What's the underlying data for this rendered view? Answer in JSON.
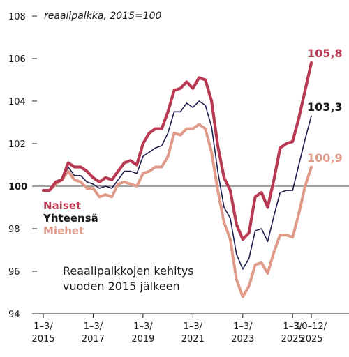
{
  "chart_data": {
    "type": "line",
    "ylabel": "reaalipalkka, 2015=100",
    "ylim": [
      94,
      108
    ],
    "yticks": [
      94,
      96,
      98,
      100,
      102,
      104,
      106,
      108
    ],
    "baseline": 100,
    "baseline_label": "100",
    "xticks": [
      {
        "x": 2015.0,
        "line1": "1–3/",
        "line2": "2015"
      },
      {
        "x": 2017.0,
        "line1": "1–3/",
        "line2": "2017"
      },
      {
        "x": 2019.0,
        "line1": "1–3/",
        "line2": "2019"
      },
      {
        "x": 2021.0,
        "line1": "1–3/",
        "line2": "2021"
      },
      {
        "x": 2023.0,
        "line1": "1–3/",
        "line2": "2023"
      },
      {
        "x": 2025.0,
        "line1": "1–3/",
        "line2": "2025"
      },
      {
        "x": 2025.75,
        "line1": "10–12/",
        "line2": "2025"
      }
    ],
    "xlim": [
      2015.0,
      2025.75
    ],
    "annotation": [
      "Reaalipalkkojen kehitys",
      "vuoden 2015 jälkeen"
    ],
    "series": [
      {
        "name": "Miehet",
        "color": "#e09a8a",
        "end_label": "100,9",
        "x": [
          2015.0,
          2015.25,
          2015.5,
          2015.75,
          2016.0,
          2016.25,
          2016.5,
          2016.75,
          2017.0,
          2017.25,
          2017.5,
          2017.75,
          2018.0,
          2018.25,
          2018.5,
          2018.75,
          2019.0,
          2019.25,
          2019.5,
          2019.75,
          2020.0,
          2020.25,
          2020.5,
          2020.75,
          2021.0,
          2021.25,
          2021.5,
          2021.75,
          2022.0,
          2022.25,
          2022.5,
          2022.75,
          2023.0,
          2023.25,
          2023.5,
          2023.75,
          2024.0,
          2024.25,
          2024.5,
          2024.75,
          2025.0,
          2025.25,
          2025.5,
          2025.75
        ],
        "values": [
          99.8,
          99.8,
          100.1,
          100.3,
          100.7,
          100.3,
          100.2,
          99.9,
          99.9,
          99.5,
          99.6,
          99.5,
          100.1,
          100.2,
          100.1,
          100.0,
          100.6,
          100.7,
          100.9,
          100.9,
          101.4,
          102.5,
          102.4,
          102.7,
          102.7,
          102.9,
          102.7,
          101.6,
          99.8,
          98.3,
          97.5,
          95.6,
          94.8,
          95.3,
          96.3,
          96.4,
          95.9,
          96.9,
          97.7,
          97.7,
          97.6,
          98.7,
          100.0,
          100.9
        ]
      },
      {
        "name": "Yhteensä",
        "color": "#1e1f4d",
        "end_label": "103,3",
        "x": [
          2015.0,
          2015.25,
          2015.5,
          2015.75,
          2016.0,
          2016.25,
          2016.5,
          2016.75,
          2017.0,
          2017.25,
          2017.5,
          2017.75,
          2018.0,
          2018.25,
          2018.5,
          2018.75,
          2019.0,
          2019.25,
          2019.5,
          2019.75,
          2020.0,
          2020.25,
          2020.5,
          2020.75,
          2021.0,
          2021.25,
          2021.5,
          2021.75,
          2022.0,
          2022.25,
          2022.5,
          2022.75,
          2023.0,
          2023.25,
          2023.5,
          2023.75,
          2024.0,
          2024.25,
          2024.5,
          2024.75,
          2025.0,
          2025.25,
          2025.5,
          2025.75
        ],
        "values": [
          99.8,
          99.8,
          100.2,
          100.3,
          100.9,
          100.5,
          100.5,
          100.2,
          100.1,
          99.9,
          100.0,
          99.9,
          100.3,
          100.7,
          100.7,
          100.6,
          101.4,
          101.6,
          101.8,
          101.9,
          102.5,
          103.5,
          103.5,
          103.9,
          103.7,
          104.0,
          103.8,
          102.8,
          100.7,
          99.0,
          98.5,
          96.8,
          96.1,
          96.6,
          97.9,
          98.0,
          97.4,
          98.6,
          99.7,
          99.8,
          99.8,
          101.0,
          102.2,
          103.3
        ]
      },
      {
        "name": "Naiset",
        "color": "#b83a52",
        "end_label": "105,8",
        "x": [
          2015.0,
          2015.25,
          2015.5,
          2015.75,
          2016.0,
          2016.25,
          2016.5,
          2016.75,
          2017.0,
          2017.25,
          2017.5,
          2017.75,
          2018.0,
          2018.25,
          2018.5,
          2018.75,
          2019.0,
          2019.25,
          2019.5,
          2019.75,
          2020.0,
          2020.25,
          2020.5,
          2020.75,
          2021.0,
          2021.25,
          2021.5,
          2021.75,
          2022.0,
          2022.25,
          2022.5,
          2022.75,
          2023.0,
          2023.25,
          2023.5,
          2023.75,
          2024.0,
          2024.25,
          2024.5,
          2024.75,
          2025.0,
          2025.25,
          2025.5,
          2025.75
        ],
        "values": [
          99.8,
          99.8,
          100.2,
          100.3,
          101.1,
          100.9,
          100.9,
          100.7,
          100.4,
          100.2,
          100.4,
          100.3,
          100.7,
          101.1,
          101.2,
          101.0,
          102.0,
          102.5,
          102.7,
          102.7,
          103.5,
          104.5,
          104.6,
          104.9,
          104.6,
          105.1,
          105.0,
          104.0,
          101.9,
          100.4,
          99.8,
          98.2,
          97.5,
          97.8,
          99.5,
          99.7,
          99.0,
          100.3,
          101.8,
          102.0,
          102.1,
          103.2,
          104.5,
          105.8
        ]
      }
    ],
    "legend": [
      {
        "label": "Naiset",
        "color": "#b83a52"
      },
      {
        "label": "Yhteensä",
        "color": "#1a1a1a"
      },
      {
        "label": "Miehet",
        "color": "#e09a8a"
      }
    ]
  }
}
